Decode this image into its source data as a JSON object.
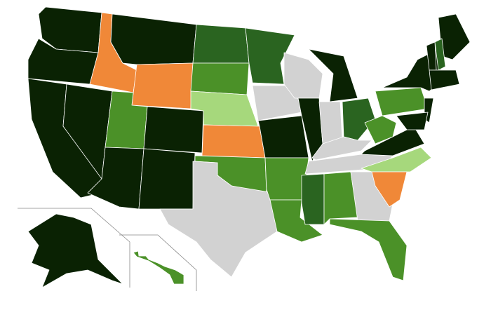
{
  "map": {
    "regions": [
      {
        "color": "#0a2203"
      },
      {
        "color": "#0a2203"
      },
      {
        "color": "#0a2203"
      },
      {
        "color": "#f08838"
      },
      {
        "color": "#0a2203"
      },
      {
        "color": "#0a2203"
      },
      {
        "color": "#f08838"
      },
      {
        "color": "#4b9128"
      },
      {
        "color": "#0a2203"
      },
      {
        "color": "#0a2203"
      },
      {
        "color": "#0a2203"
      },
      {
        "color": "#2a6420"
      },
      {
        "color": "#4b9128"
      },
      {
        "color": "#a6d87c"
      },
      {
        "color": "#f08838"
      },
      {
        "color": "#4b9128"
      },
      {
        "color": "#d2d2d2"
      },
      {
        "color": "#2a6420"
      },
      {
        "color": "#d2d2d2"
      },
      {
        "color": "#0a2203"
      },
      {
        "color": "#4b9128"
      },
      {
        "color": "#4b9128"
      },
      {
        "color": "#d2d2d2"
      },
      {
        "color": "#0a2203"
      },
      {
        "color": "#0a2203"
      },
      {
        "color": "#d2d2d2"
      },
      {
        "color": "#2a6420"
      },
      {
        "color": "#d2d2d2"
      },
      {
        "color": "#d2d2d2"
      },
      {
        "color": "#2a6420"
      },
      {
        "color": "#4b9128"
      },
      {
        "color": "#d2d2d2"
      },
      {
        "color": "#4b9128"
      },
      {
        "color": "#a6d87c"
      },
      {
        "color": "#f08838"
      },
      {
        "color": "#0a2203"
      },
      {
        "color": "#4b9128"
      },
      {
        "color": "#4b9128"
      },
      {
        "color": "#0a2203"
      },
      {
        "color": "#0a2203"
      },
      {
        "color": "#2a6420"
      },
      {
        "color": "#0a2203"
      },
      {
        "color": "#0a2203"
      },
      {
        "color": "#0a2203"
      },
      {
        "color": "#0a2203"
      },
      {
        "color": "#0a2203"
      },
      {
        "color": "#4b9128"
      }
    ]
  }
}
